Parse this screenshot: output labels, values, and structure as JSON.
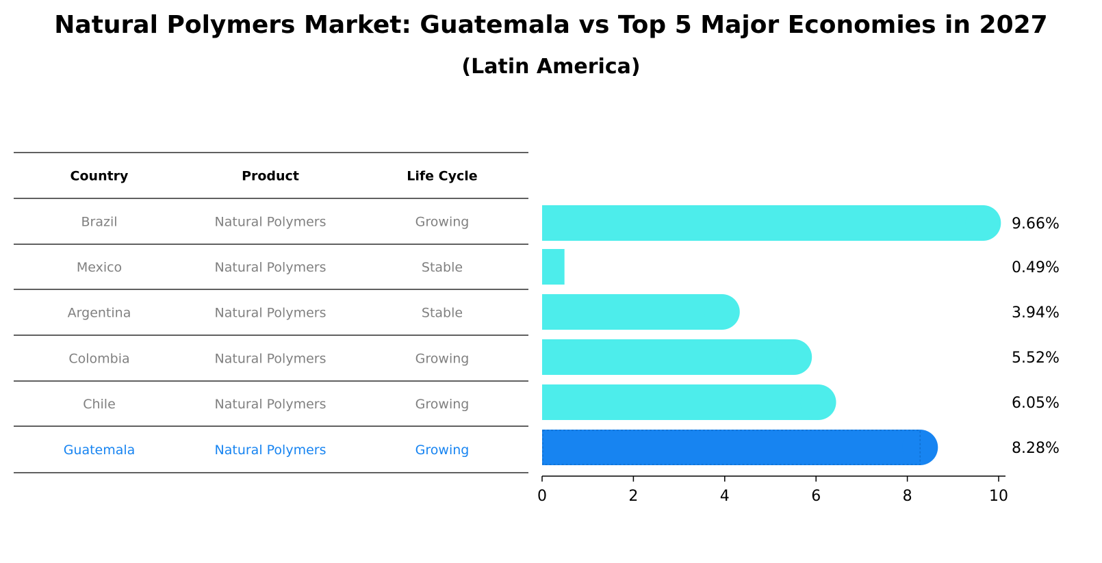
{
  "title": "Natural Polymers Market: Guatemala vs Top 5 Major Economies in 2027",
  "subtitle": "(Latin America)",
  "colors": {
    "bar": "#4DEDEB",
    "highlight": "#1784F1",
    "muted_text": "#808080",
    "line": "#000000"
  },
  "table": {
    "headers": [
      "Country",
      "Product",
      "Life Cycle"
    ],
    "rows": [
      [
        "Brazil",
        "Natural Polymers",
        "Growing"
      ],
      [
        "Mexico",
        "Natural Polymers",
        "Stable"
      ],
      [
        "Argentina",
        "Natural Polymers",
        "Stable"
      ],
      [
        "Colombia",
        "Natural Polymers",
        "Growing"
      ],
      [
        "Chile",
        "Natural Polymers",
        "Growing"
      ],
      [
        "Guatemala",
        "Natural Polymers",
        "Growing"
      ]
    ],
    "highlight_row": "Guatemala"
  },
  "chart_data": {
    "type": "bar",
    "orientation": "horizontal",
    "title": "Natural Polymers Market: Guatemala vs Top 5 Major Economies in 2027",
    "subtitle": "(Latin America)",
    "categories": [
      "Brazil",
      "Mexico",
      "Argentina",
      "Colombia",
      "Chile",
      "Guatemala"
    ],
    "values": [
      9.66,
      0.49,
      3.94,
      5.52,
      6.05,
      8.28
    ],
    "value_labels": [
      "9.66%",
      "0.49%",
      "3.94%",
      "5.52%",
      "6.05%",
      "8.28%"
    ],
    "highlight": "Guatemala",
    "xlim": [
      0,
      10
    ],
    "xticks": [
      0,
      2,
      4,
      6,
      8,
      10
    ],
    "xlabel": "",
    "ylabel": "",
    "grid": false,
    "legend": false
  }
}
